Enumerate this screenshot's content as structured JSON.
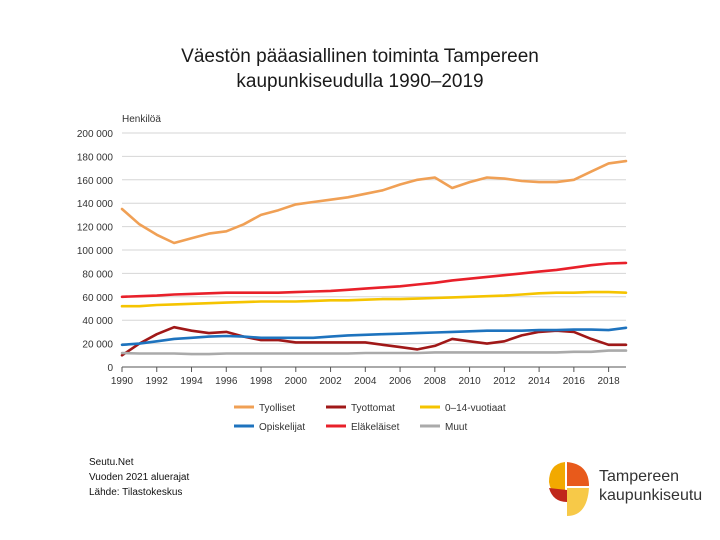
{
  "slide": {
    "title_line1": "Väestön pääasiallinen toiminta Tampereen",
    "title_line2": "kaupunkiseudulla 1990–2019"
  },
  "source": {
    "line1": "Seutu.Net",
    "line2": "Vuoden 2021 aluerajat",
    "line3": "Lähde: Tilastokeskus"
  },
  "logo": {
    "line1": "Tampereen",
    "line2": "kaupunkiseutu",
    "colors": [
      "#f2a900",
      "#e85a1b",
      "#c0271b",
      "#f7c948"
    ]
  },
  "chart_data": {
    "type": "line",
    "ylabel": "Henkilöä",
    "xlim": [
      1990,
      2019
    ],
    "ylim": [
      0,
      200000
    ],
    "grid": true,
    "legend_position": "bottom",
    "x_ticks": [
      1990,
      1992,
      1994,
      1996,
      1998,
      2000,
      2002,
      2004,
      2006,
      2008,
      2010,
      2012,
      2014,
      2016,
      2018
    ],
    "y_ticks": [
      0,
      20000,
      40000,
      60000,
      80000,
      100000,
      120000,
      140000,
      160000,
      180000,
      200000
    ],
    "y_tick_labels": [
      "0",
      "20 000",
      "40 000",
      "60 000",
      "80 000",
      "100 000",
      "120 000",
      "140 000",
      "160 000",
      "180 000",
      "200 000"
    ],
    "x": [
      1990,
      1991,
      1992,
      1993,
      1994,
      1995,
      1996,
      1997,
      1998,
      1999,
      2000,
      2001,
      2002,
      2003,
      2004,
      2005,
      2006,
      2007,
      2008,
      2009,
      2010,
      2011,
      2012,
      2013,
      2014,
      2015,
      2016,
      2017,
      2018,
      2019
    ],
    "series": [
      {
        "name": "Tyolliset",
        "color": "#f0a055",
        "values": [
          135000,
          122000,
          113000,
          106000,
          110000,
          114000,
          116000,
          122000,
          130000,
          134000,
          139000,
          141000,
          143000,
          145000,
          148000,
          151000,
          156000,
          160000,
          162000,
          153000,
          158000,
          162000,
          161000,
          159000,
          158000,
          158000,
          160000,
          167000,
          174000,
          176000
        ]
      },
      {
        "name": "Tyottomat",
        "color": "#a01818",
        "values": [
          10000,
          20000,
          28000,
          34000,
          31000,
          29000,
          30000,
          26000,
          23000,
          23000,
          21000,
          21000,
          21000,
          21000,
          21000,
          19000,
          17000,
          15000,
          18000,
          24000,
          22000,
          20000,
          22000,
          27000,
          30000,
          31000,
          30000,
          24000,
          19000,
          19000
        ]
      },
      {
        "name": "0–14-vuotiaat",
        "color": "#f5c400",
        "values": [
          52000,
          52000,
          53000,
          53500,
          54000,
          54500,
          55000,
          55500,
          56000,
          56000,
          56000,
          56500,
          57000,
          57000,
          57500,
          58000,
          58000,
          58500,
          59000,
          59500,
          60000,
          60500,
          61000,
          62000,
          63000,
          63500,
          63500,
          64000,
          64000,
          63500
        ]
      },
      {
        "name": "Opiskelijat",
        "color": "#1e73be",
        "values": [
          19000,
          20000,
          22000,
          24000,
          25000,
          26000,
          26500,
          26000,
          25000,
          25000,
          25000,
          25000,
          26000,
          27000,
          27500,
          28000,
          28500,
          29000,
          29500,
          30000,
          30500,
          31000,
          31000,
          31000,
          31500,
          31500,
          32000,
          32000,
          31500,
          33500
        ]
      },
      {
        "name": "Eläkeläiset",
        "color": "#e8202a",
        "values": [
          60000,
          60500,
          61000,
          62000,
          62500,
          63000,
          63500,
          63500,
          63500,
          63500,
          64000,
          64500,
          65000,
          66000,
          67000,
          68000,
          69000,
          70500,
          72000,
          74000,
          75500,
          77000,
          78500,
          80000,
          81500,
          83000,
          85000,
          87000,
          88500,
          89000
        ]
      },
      {
        "name": "Muut",
        "color": "#aaaaaa",
        "values": [
          12000,
          11500,
          11500,
          11500,
          11000,
          11000,
          11500,
          11500,
          11500,
          11500,
          11500,
          11500,
          11500,
          11500,
          12000,
          12000,
          12000,
          12000,
          12500,
          12500,
          12500,
          12500,
          12500,
          12500,
          12500,
          12500,
          13000,
          13000,
          14000,
          14000
        ]
      }
    ]
  }
}
